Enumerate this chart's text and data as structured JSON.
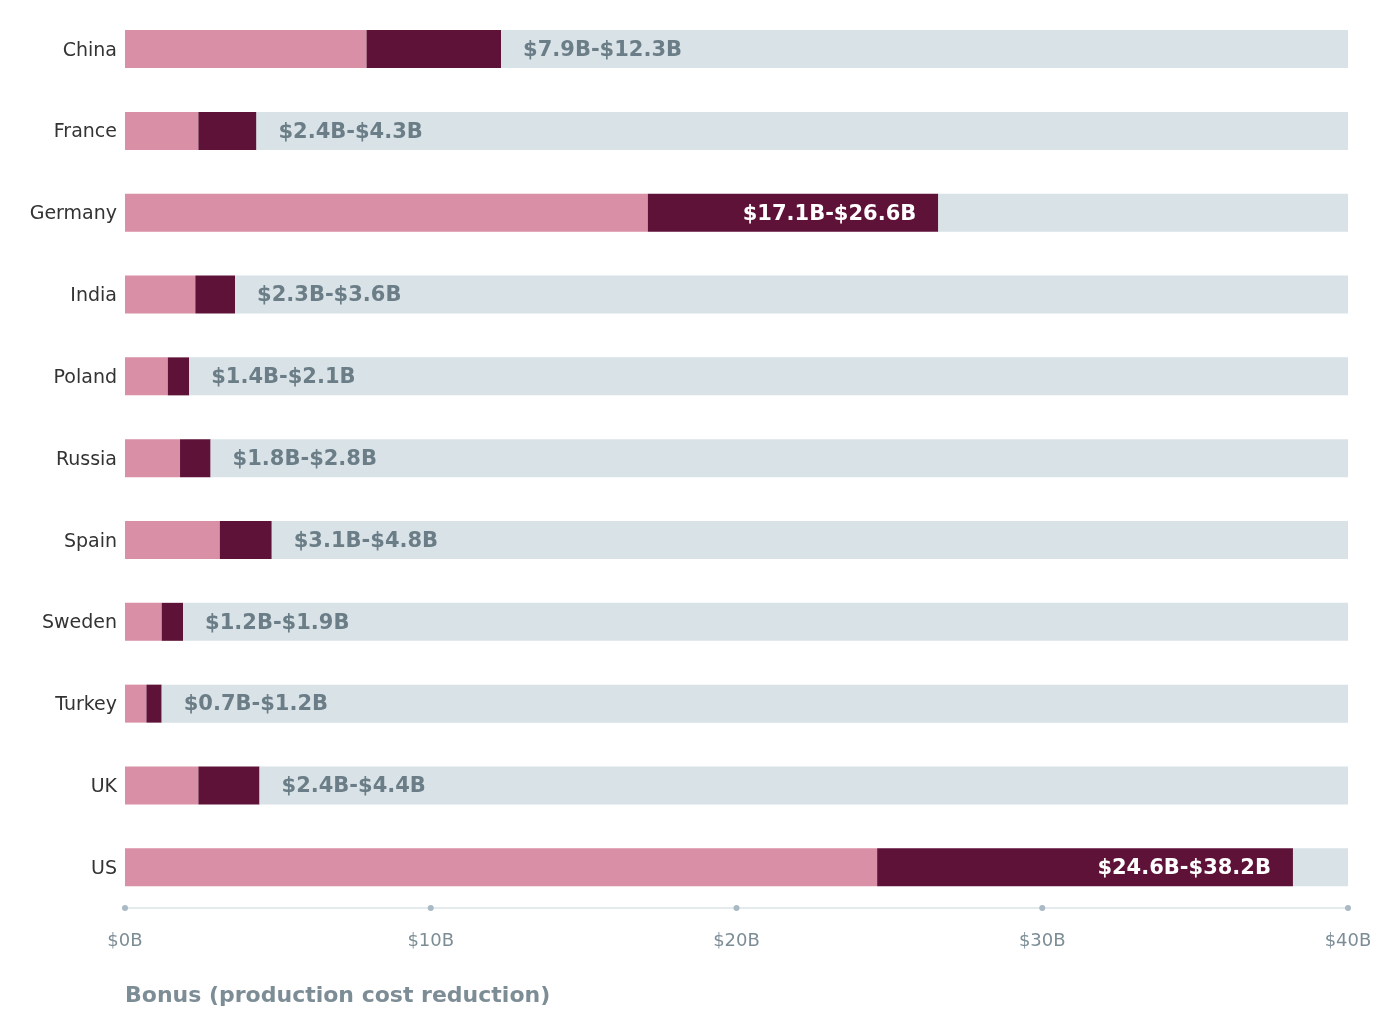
{
  "chart_data": {
    "type": "bar",
    "orientation": "horizontal",
    "stacked": true,
    "xlabel": "Bonus (production cost reduction)",
    "categories": [
      "China",
      "France",
      "Germany",
      "India",
      "Poland",
      "Russia",
      "Spain",
      "Sweden",
      "Turkey",
      "UK",
      "US"
    ],
    "series": [
      {
        "color": "#d98fa5",
        "values": [
          7.9,
          2.4,
          17.1,
          2.3,
          1.4,
          1.8,
          3.1,
          1.2,
          0.7,
          2.4,
          24.6
        ]
      },
      {
        "color": "#5e1238",
        "values": [
          4.4,
          1.9,
          9.5,
          1.3,
          0.7,
          1.0,
          1.7,
          0.7,
          0.5,
          2.0,
          13.6
        ]
      },
      {
        "color": "#d8e2e7",
        "values": [
          27.7,
          35.7,
          13.4,
          36.4,
          37.9,
          37.2,
          35.2,
          38.1,
          38.8,
          35.6,
          1.8
        ]
      }
    ],
    "annotations": [
      {
        "text": "$7.9B-$12.3B",
        "x": 12.3,
        "y": "China"
      },
      {
        "text": "$2.4B-$4.3B",
        "x": 4.3,
        "y": "France"
      },
      {
        "text": "$17.1B-$26.6B",
        "x": 26.6,
        "y": "Germany"
      },
      {
        "text": "$2.3B-$3.6B",
        "x": 3.6,
        "y": "India"
      },
      {
        "text": "$1.4B-$2.1B",
        "x": 2.1,
        "y": "Poland"
      },
      {
        "text": "$1.8B-$2.8B",
        "x": 2.8,
        "y": "Russia"
      },
      {
        "text": "$3.1B-$4.8B",
        "x": 4.8,
        "y": "Spain"
      },
      {
        "text": "$1.2B-$1.9B",
        "x": 1.9,
        "y": "Sweden"
      },
      {
        "text": "$0.7B-$1.2B",
        "x": 1.2,
        "y": "Turkey"
      },
      {
        "text": "$2.4B-$4.4B",
        "x": 4.4,
        "y": "UK"
      },
      {
        "text": "$24.6B-$38.2B",
        "x": 38.2,
        "y": "US"
      }
    ],
    "xlim": [
      0,
      40
    ],
    "xticks": [
      {
        "value": 0,
        "label": "$0B"
      },
      {
        "value": 10,
        "label": "$10B"
      },
      {
        "value": 20,
        "label": "$20B"
      },
      {
        "value": 30,
        "label": "$30B"
      },
      {
        "value": 40,
        "label": "$40B"
      }
    ],
    "grid": false,
    "legend": false
  }
}
